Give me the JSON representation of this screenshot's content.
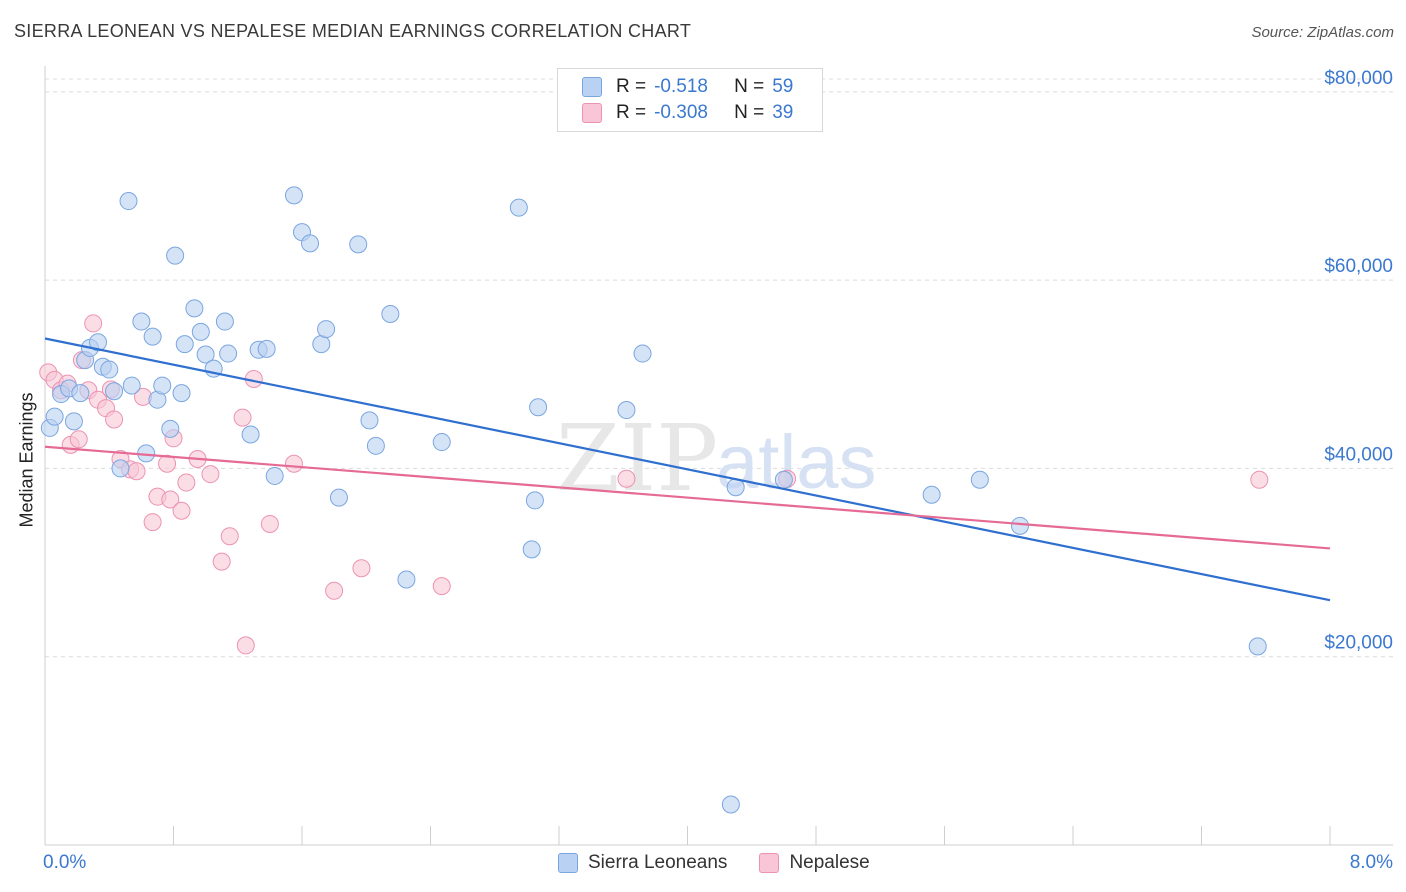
{
  "title": "SIERRA LEONEAN VS NEPALESE MEDIAN EARNINGS CORRELATION CHART",
  "source": "Source: ZipAtlas.com",
  "watermark": {
    "zip": "ZIP",
    "atlas": "atlas"
  },
  "legend": {
    "r_label": "R =",
    "n_label": "N =",
    "rows": [
      {
        "r": "-0.518",
        "n": "59"
      },
      {
        "r": "-0.308",
        "n": "39"
      }
    ]
  },
  "colors": {
    "blue_fill": "#b9d1f2",
    "blue_stroke": "#7aa6e0",
    "blue_line": "#2f6fd0",
    "pink_fill": "#f8c6d6",
    "pink_stroke": "#ec93b2",
    "pink_line": "#e56a95",
    "axis_text": "#3b78d0"
  },
  "chart_data": {
    "type": "scatter",
    "title": "SIERRA LEONEAN VS NEPALESE MEDIAN EARNINGS CORRELATION CHART",
    "xlabel": "",
    "ylabel": "Median Earnings",
    "xlim": [
      0,
      8
    ],
    "ylim": [
      0,
      82000
    ],
    "x_tick_labels": [
      "0.0%",
      "8.0%"
    ],
    "y_ticks": [
      20000,
      40000,
      60000,
      80000
    ],
    "y_tick_labels": [
      "$20,000",
      "$40,000",
      "$60,000",
      "$80,000"
    ],
    "grid": true,
    "series": [
      {
        "name": "Sierra Leoneans",
        "r": -0.518,
        "n": 59,
        "trend": {
          "x": [
            0,
            8
          ],
          "y": [
            53800,
            26000
          ]
        },
        "points": [
          {
            "x": 0.03,
            "y": 44300
          },
          {
            "x": 0.06,
            "y": 45500
          },
          {
            "x": 0.1,
            "y": 47900
          },
          {
            "x": 0.15,
            "y": 48500
          },
          {
            "x": 0.18,
            "y": 45000
          },
          {
            "x": 0.22,
            "y": 48000
          },
          {
            "x": 0.25,
            "y": 51500
          },
          {
            "x": 0.28,
            "y": 52800
          },
          {
            "x": 0.33,
            "y": 53400
          },
          {
            "x": 0.36,
            "y": 50800
          },
          {
            "x": 0.4,
            "y": 50500
          },
          {
            "x": 0.43,
            "y": 48200
          },
          {
            "x": 0.47,
            "y": 40000
          },
          {
            "x": 0.52,
            "y": 68400
          },
          {
            "x": 0.54,
            "y": 48800
          },
          {
            "x": 0.6,
            "y": 55600
          },
          {
            "x": 0.63,
            "y": 41600
          },
          {
            "x": 0.67,
            "y": 54000
          },
          {
            "x": 0.7,
            "y": 47300
          },
          {
            "x": 0.73,
            "y": 48800
          },
          {
            "x": 0.78,
            "y": 44200
          },
          {
            "x": 0.81,
            "y": 62600
          },
          {
            "x": 0.85,
            "y": 48000
          },
          {
            "x": 0.87,
            "y": 53200
          },
          {
            "x": 0.93,
            "y": 57000
          },
          {
            "x": 0.97,
            "y": 54500
          },
          {
            "x": 1.0,
            "y": 52100
          },
          {
            "x": 1.05,
            "y": 50600
          },
          {
            "x": 1.12,
            "y": 55600
          },
          {
            "x": 1.14,
            "y": 52200
          },
          {
            "x": 1.28,
            "y": 43600
          },
          {
            "x": 1.33,
            "y": 52600
          },
          {
            "x": 1.38,
            "y": 52700
          },
          {
            "x": 1.43,
            "y": 39200
          },
          {
            "x": 1.55,
            "y": 69000
          },
          {
            "x": 1.6,
            "y": 65100
          },
          {
            "x": 1.65,
            "y": 63900
          },
          {
            "x": 1.72,
            "y": 53200
          },
          {
            "x": 1.75,
            "y": 54800
          },
          {
            "x": 1.83,
            "y": 36900
          },
          {
            "x": 1.95,
            "y": 63800
          },
          {
            "x": 2.02,
            "y": 45100
          },
          {
            "x": 2.06,
            "y": 42400
          },
          {
            "x": 2.15,
            "y": 56400
          },
          {
            "x": 2.25,
            "y": 28200
          },
          {
            "x": 2.47,
            "y": 42800
          },
          {
            "x": 2.95,
            "y": 67700
          },
          {
            "x": 3.03,
            "y": 31400
          },
          {
            "x": 3.05,
            "y": 36600
          },
          {
            "x": 3.07,
            "y": 46500
          },
          {
            "x": 3.62,
            "y": 46200
          },
          {
            "x": 3.72,
            "y": 52200
          },
          {
            "x": 4.3,
            "y": 38000
          },
          {
            "x": 4.6,
            "y": 38800
          },
          {
            "x": 5.52,
            "y": 37200
          },
          {
            "x": 5.82,
            "y": 38800
          },
          {
            "x": 6.07,
            "y": 33900
          },
          {
            "x": 7.55,
            "y": 21100
          },
          {
            "x": 4.27,
            "y": 4300
          }
        ]
      },
      {
        "name": "Nepalese",
        "r": -0.308,
        "n": 39,
        "trend": {
          "x": [
            0,
            8
          ],
          "y": [
            42300,
            31500
          ]
        },
        "points": [
          {
            "x": 0.02,
            "y": 50200
          },
          {
            "x": 0.06,
            "y": 49400
          },
          {
            "x": 0.1,
            "y": 48300
          },
          {
            "x": 0.14,
            "y": 49000
          },
          {
            "x": 0.16,
            "y": 42500
          },
          {
            "x": 0.21,
            "y": 43100
          },
          {
            "x": 0.23,
            "y": 51500
          },
          {
            "x": 0.27,
            "y": 48300
          },
          {
            "x": 0.3,
            "y": 55400
          },
          {
            "x": 0.33,
            "y": 47300
          },
          {
            "x": 0.38,
            "y": 46400
          },
          {
            "x": 0.41,
            "y": 48400
          },
          {
            "x": 0.43,
            "y": 45200
          },
          {
            "x": 0.47,
            "y": 41000
          },
          {
            "x": 0.53,
            "y": 39900
          },
          {
            "x": 0.57,
            "y": 39700
          },
          {
            "x": 0.61,
            "y": 47600
          },
          {
            "x": 0.67,
            "y": 34300
          },
          {
            "x": 0.7,
            "y": 37000
          },
          {
            "x": 0.76,
            "y": 40500
          },
          {
            "x": 0.78,
            "y": 36700
          },
          {
            "x": 0.8,
            "y": 43200
          },
          {
            "x": 0.85,
            "y": 35500
          },
          {
            "x": 0.88,
            "y": 38500
          },
          {
            "x": 0.95,
            "y": 41000
          },
          {
            "x": 1.03,
            "y": 39400
          },
          {
            "x": 1.1,
            "y": 30100
          },
          {
            "x": 1.15,
            "y": 32800
          },
          {
            "x": 1.23,
            "y": 45400
          },
          {
            "x": 1.25,
            "y": 21200
          },
          {
            "x": 1.3,
            "y": 49500
          },
          {
            "x": 1.4,
            "y": 34100
          },
          {
            "x": 1.55,
            "y": 40500
          },
          {
            "x": 1.8,
            "y": 27000
          },
          {
            "x": 1.97,
            "y": 29400
          },
          {
            "x": 2.47,
            "y": 27500
          },
          {
            "x": 3.62,
            "y": 38900
          },
          {
            "x": 4.62,
            "y": 38900
          },
          {
            "x": 7.56,
            "y": 38800
          }
        ]
      }
    ]
  }
}
